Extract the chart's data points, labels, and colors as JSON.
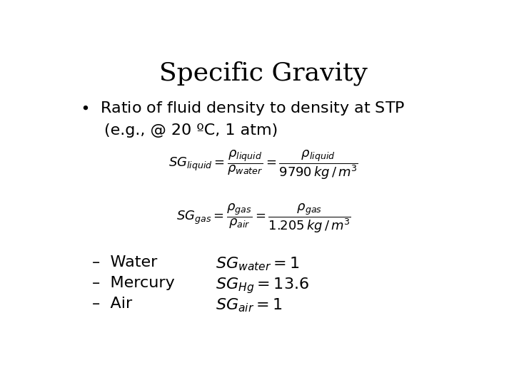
{
  "title": "Specific Gravity",
  "background_color": "#ffffff",
  "text_color": "#000000",
  "title_fontsize": 26,
  "body_fontsize": 16,
  "math_fontsize": 13,
  "small_math_fontsize": 12,
  "bullet1": "Ratio of fluid density to density at STP",
  "bullet1_sub": "(e.g., @ 20 ºC, 1 atm)",
  "list_items": [
    [
      "Water",
      "$SG_{water} = 1$"
    ],
    [
      "Mercury",
      "$SG_{Hg} = 13.6$"
    ],
    [
      "Air",
      "$SG_{air} = 1$"
    ]
  ]
}
